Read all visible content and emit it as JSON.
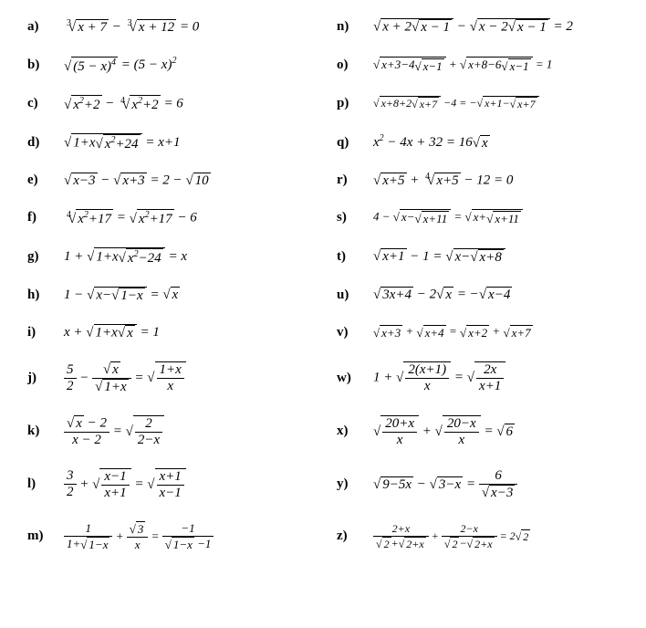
{
  "fontsize": 15,
  "font_family": "Times New Roman",
  "background_color": "#ffffff",
  "text_color": "#000000",
  "columns": 2,
  "problems": [
    {
      "label": "a)",
      "eq": "∛(x+7) − ∛(x+12) = 0"
    },
    {
      "label": "n)",
      "eq": "√(x+2√(x−1)) − √(x−2√(x−1)) = 2"
    },
    {
      "label": "b)",
      "eq": "√((5−x)^4) = (5−x)^2"
    },
    {
      "label": "o)",
      "eq": "√(x+3−4√(x−1)) + √(x+8−6√(x−1)) = 1"
    },
    {
      "label": "c)",
      "eq": "√(x^2+2) − ⁴√(x^2+2) = 6"
    },
    {
      "label": "p)",
      "eq": "√(x+8+2√(x+7)) − 4 = −√(x+1−√(x+7))"
    },
    {
      "label": "d)",
      "eq": "√(1+x√(x^2+24)) = x+1"
    },
    {
      "label": "q)",
      "eq": "x^2 − 4x + 32 = 16√x"
    },
    {
      "label": "e)",
      "eq": "√(x−3) − √(x+3) = 2 − √10"
    },
    {
      "label": "r)",
      "eq": "√(x+5) + ⁴√(x+5) − 12 = 0"
    },
    {
      "label": "f)",
      "eq": "⁴√(x^2+17) = √(x^2+17) − 6"
    },
    {
      "label": "s)",
      "eq": "4 − √(x−√(x+11)) = √(x+√(x+11))"
    },
    {
      "label": "g)",
      "eq": "1 + √(1+x√(x^2−24)) = x"
    },
    {
      "label": "t)",
      "eq": "√(x+1) − 1 = √(x−√(x+8))"
    },
    {
      "label": "h)",
      "eq": "1 − √(x−√(1−x)) = √x"
    },
    {
      "label": "u)",
      "eq": "√(3x+4) − 2√x = −√(x−4)"
    },
    {
      "label": "i)",
      "eq": "x + √(1+x√x) = 1"
    },
    {
      "label": "v)",
      "eq": "√(x+3) + √(x+4) = √(x+2) + √(x+7)"
    },
    {
      "label": "j)",
      "eq": "5/2 − √x/√(1+x) = √((1+x)/x)"
    },
    {
      "label": "w)",
      "eq": "1 + √(2(x+1)/x) = √(2x/(x+1))"
    },
    {
      "label": "k)",
      "eq": "(√x − 2)/(x−2) = √(2/(2−x))"
    },
    {
      "label": "x)",
      "eq": "√((20+x)/x) + √((20−x)/x) = √6"
    },
    {
      "label": "l)",
      "eq": "3/2 + √((x−1)/(x+1)) = √((x+1)/(x−1))"
    },
    {
      "label": "y)",
      "eq": "√(9−5x) − √(3−x) = 6/√(x−3)"
    },
    {
      "label": "m)",
      "eq": "1/(1+√(1−x)) + √3/x = −1/(√(1−x)−1)"
    },
    {
      "label": "z)",
      "eq": "(2+x)/(√2+√(2+x)) + (2−x)/(√2−√(2+x)) = 2√2"
    }
  ]
}
